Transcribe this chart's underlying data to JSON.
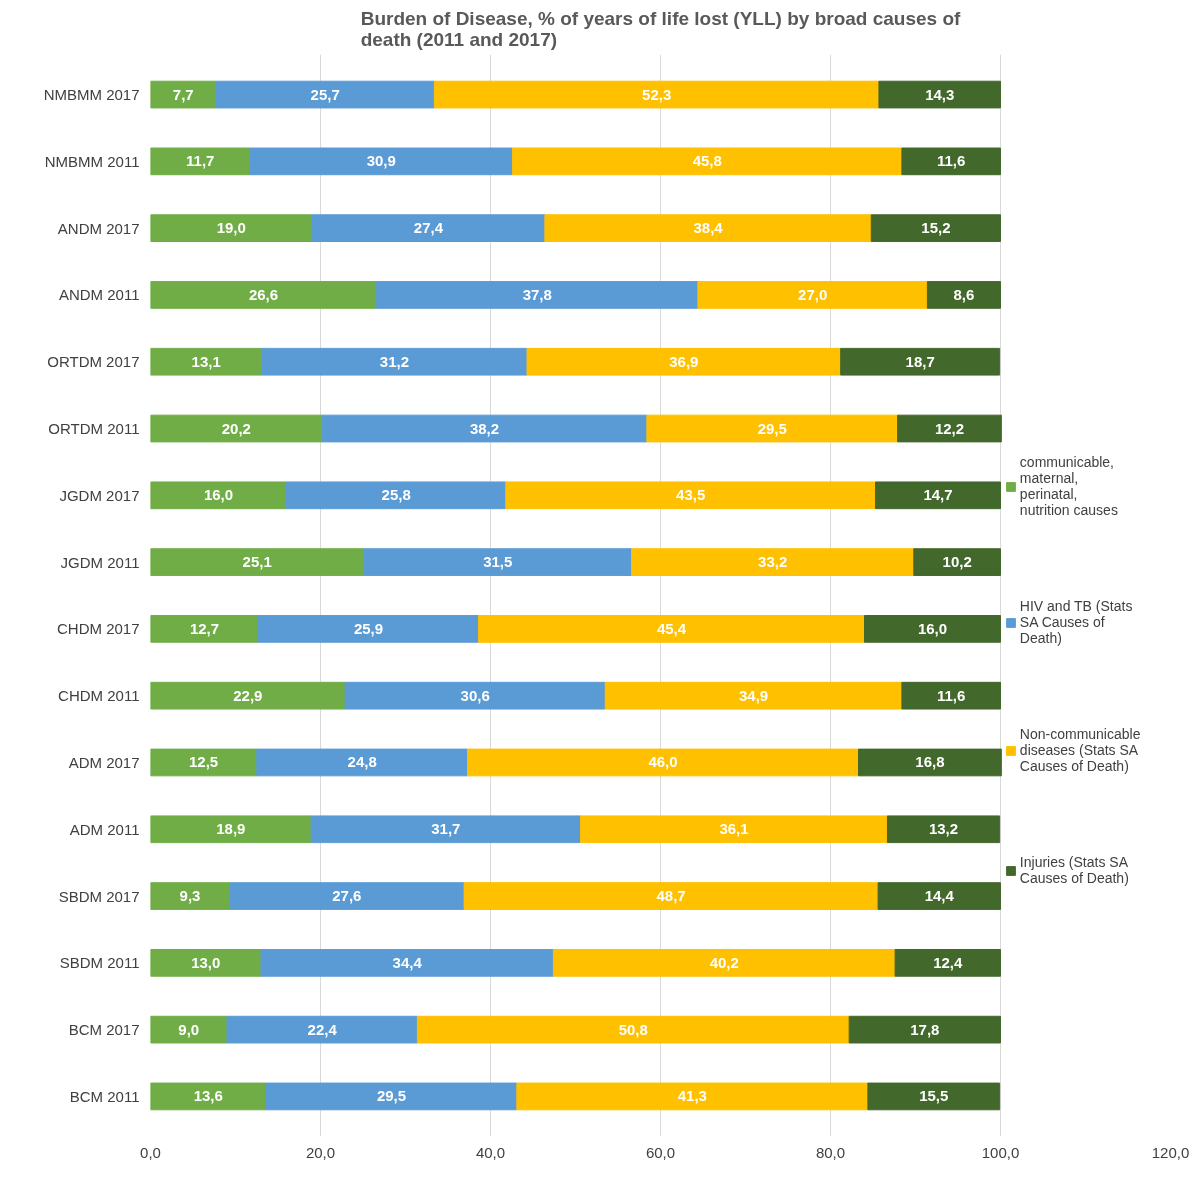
{
  "chart_data": {
    "type": "bar",
    "orientation": "horizontal",
    "stacked": true,
    "title": "Burden of Disease, % of years of life lost (YLL) by broad causes of death (2011 and 2017)",
    "categories": [
      "NMBMM 2017",
      "NMBMM 2011",
      "ANDM 2017",
      "ANDM 2011",
      "ORTDM 2017",
      "ORTDM 2011",
      "JGDM 2017",
      "JGDM 2011",
      "CHDM 2017",
      "CHDM 2011",
      "ADM 2017",
      "ADM 2011",
      "SBDM 2017",
      "SBDM 2011",
      "BCM 2017",
      "BCM 2011"
    ],
    "series": [
      {
        "name": "communicable, maternal, perinatal, nutrition causes",
        "color": "#70ad47",
        "values": [
          7.7,
          11.7,
          19.0,
          26.6,
          13.1,
          20.2,
          16.0,
          25.1,
          12.7,
          22.9,
          12.5,
          18.9,
          9.3,
          13.0,
          9.0,
          13.6
        ],
        "value_labels": [
          "7,7",
          "11,7",
          "19,0",
          "26,6",
          "13,1",
          "20,2",
          "16,0",
          "25,1",
          "12,7",
          "22,9",
          "12,5",
          "18,9",
          "9,3",
          "13,0",
          "9,0",
          "13,6"
        ]
      },
      {
        "name": "HIV and TB (Stats SA Causes of Death)",
        "color": "#5b9bd5",
        "values": [
          25.7,
          30.9,
          27.4,
          37.8,
          31.2,
          38.2,
          25.8,
          31.5,
          25.9,
          30.6,
          24.8,
          31.7,
          27.6,
          34.4,
          22.4,
          29.5
        ],
        "value_labels": [
          "25,7",
          "30,9",
          "27,4",
          "37,8",
          "31,2",
          "38,2",
          "25,8",
          "31,5",
          "25,9",
          "30,6",
          "24,8",
          "31,7",
          "27,6",
          "34,4",
          "22,4",
          "29,5"
        ]
      },
      {
        "name": "Non-communicable diseases (Stats SA Causes of Death)",
        "color": "#ffc000",
        "values": [
          52.3,
          45.8,
          38.4,
          27.0,
          36.9,
          29.5,
          43.5,
          33.2,
          45.4,
          34.9,
          46.0,
          36.1,
          48.7,
          40.2,
          50.8,
          41.3
        ],
        "value_labels": [
          "52,3",
          "45,8",
          "38,4",
          "27,0",
          "36,9",
          "29,5",
          "43,5",
          "33,2",
          "45,4",
          "34,9",
          "46,0",
          "36,1",
          "48,7",
          "40,2",
          "50,8",
          "41,3"
        ]
      },
      {
        "name": "Injuries (Stats SA Causes of Death)",
        "color": "#43682b",
        "values": [
          14.3,
          11.6,
          15.2,
          8.6,
          18.7,
          12.2,
          14.7,
          10.2,
          16.0,
          11.6,
          16.8,
          13.2,
          14.4,
          12.4,
          17.8,
          15.5
        ],
        "value_labels": [
          "14,3",
          "11,6",
          "15,2",
          "8,6",
          "18,7",
          "12,2",
          "14,7",
          "10,2",
          "16,0",
          "11,6",
          "16,8",
          "13,2",
          "14,4",
          "12,4",
          "17,8",
          "15,5"
        ]
      }
    ],
    "xlim": [
      0,
      120
    ],
    "xticks": [
      {
        "value": 0,
        "label": "0,0"
      },
      {
        "value": 20,
        "label": "20,0"
      },
      {
        "value": 40,
        "label": "40,0"
      },
      {
        "value": 60,
        "label": "60,0"
      },
      {
        "value": 80,
        "label": "80,0"
      },
      {
        "value": 100,
        "label": "100,0"
      },
      {
        "value": 120,
        "label": "120,0"
      }
    ],
    "grid": "x",
    "legend": "right"
  }
}
